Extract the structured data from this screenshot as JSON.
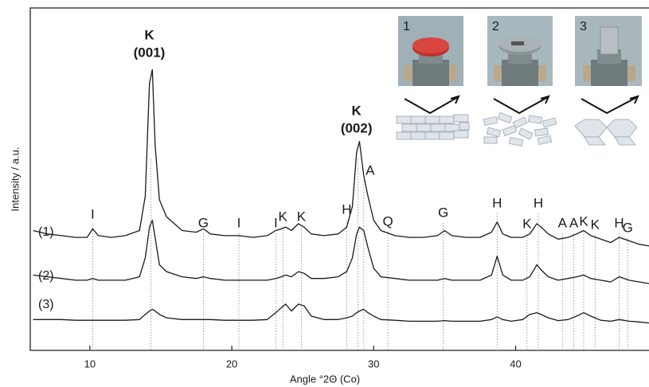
{
  "chart_data": {
    "type": "line",
    "x_label": "Angle °2Θ (Co)",
    "y_label": "Intensity / a.u.",
    "xlim": [
      5.8,
      49.4
    ],
    "xticks": [
      10,
      20,
      30,
      40
    ],
    "ylim": [
      0,
      100
    ],
    "x": [
      6,
      7,
      8,
      9,
      9.8,
      10.2,
      10.6,
      11.5,
      12.5,
      13.5,
      13.9,
      14.2,
      14.4,
      14.6,
      14.9,
      15.4,
      16.5,
      17.5,
      18.0,
      18.5,
      19.5,
      20.5,
      21.5,
      22.5,
      23.1,
      23.5,
      23.8,
      24.2,
      24.7,
      25.1,
      25.6,
      26.5,
      27.5,
      28.1,
      28.5,
      28.8,
      29.0,
      29.3,
      29.6,
      30.0,
      30.5,
      31.5,
      32.5,
      33.5,
      34.5,
      35.0,
      35.5,
      36.5,
      37.5,
      38.3,
      38.7,
      39.1,
      39.7,
      40.5,
      41.0,
      41.5,
      41.8,
      42.3,
      43.0,
      43.7,
      44.3,
      44.8,
      45.3,
      46.0,
      46.7,
      47.3,
      48.0,
      48.7,
      49.4
    ],
    "series": [
      {
        "name": "(1)",
        "color": "#1a1a1a",
        "values": [
          35,
          34,
          33.5,
          33,
          33,
          35.5,
          33.5,
          33,
          33.5,
          35,
          45,
          78,
          82,
          60,
          44,
          39,
          35,
          34.5,
          35.5,
          34,
          33.5,
          33.5,
          33,
          33.5,
          35,
          35.5,
          36,
          35,
          37,
          36,
          34,
          33.5,
          34,
          36,
          42,
          58,
          61,
          51,
          45,
          38,
          35,
          33.5,
          33,
          33,
          33.5,
          35,
          33.5,
          33,
          33,
          34.5,
          37.5,
          34,
          33,
          33,
          34,
          37,
          36,
          34,
          32.5,
          33,
          34,
          35,
          33.5,
          32.5,
          31.5,
          33,
          32,
          31,
          30.5
        ]
      },
      {
        "name": "(2)",
        "color": "#1a1a1a",
        "values": [
          22,
          21.5,
          21,
          20.5,
          20.5,
          21,
          20.5,
          20.5,
          20.5,
          21.5,
          27,
          36,
          38,
          33,
          25,
          23,
          21.5,
          21,
          21.5,
          21,
          20.5,
          20.5,
          20.5,
          20.5,
          21,
          21.5,
          22,
          21.5,
          23,
          22.5,
          21,
          21,
          21.5,
          23,
          27,
          34,
          36,
          35,
          30,
          24,
          21.5,
          21,
          20.5,
          20.5,
          20.5,
          21,
          20.5,
          20.5,
          20.5,
          22,
          27.5,
          22,
          20.5,
          20.5,
          21.5,
          25,
          23.5,
          21.5,
          20.5,
          21,
          21.5,
          22,
          21,
          20.5,
          20,
          21.5,
          20.5,
          20,
          19.5
        ]
      },
      {
        "name": "(3)",
        "color": "#1a1a1a",
        "values": [
          9,
          9,
          9,
          8.8,
          8.8,
          8.8,
          8.8,
          8.8,
          8.8,
          9,
          10.5,
          11.5,
          12,
          11.5,
          10.5,
          9.5,
          9,
          9,
          9,
          9,
          8.8,
          8.8,
          8.8,
          9,
          11,
          12.5,
          13.5,
          11.5,
          13.5,
          13,
          10,
          9,
          9,
          9.5,
          10,
          11,
          11.5,
          12,
          11,
          10,
          9,
          8.8,
          8.5,
          8.5,
          8.5,
          8.7,
          8.5,
          8.5,
          8.5,
          9,
          9.8,
          9,
          8.5,
          9,
          10.5,
          11,
          10.5,
          9.5,
          8.7,
          9,
          10,
          11,
          10,
          8.8,
          8.5,
          9,
          8.5,
          8.3,
          8
        ]
      }
    ],
    "peak_labels": [
      {
        "lines": [
          "K",
          "(001)"
        ],
        "x": 14.3
      },
      {
        "lines": [
          "K",
          "(002)"
        ],
        "x": 28.9
      }
    ],
    "annotations": [
      {
        "text": "I",
        "x": 10.2
      },
      {
        "text": "G",
        "x": 18.0
      },
      {
        "text": "I",
        "x": 20.5
      },
      {
        "text": "I",
        "x": 23.1
      },
      {
        "text": "K",
        "x": 23.6
      },
      {
        "text": "K",
        "x": 24.9
      },
      {
        "text": "H",
        "x": 28.1
      },
      {
        "text": "A",
        "x": 29.3
      },
      {
        "text": "Q",
        "x": 31.0
      },
      {
        "text": "G",
        "x": 34.9
      },
      {
        "text": "H",
        "x": 38.7
      },
      {
        "text": "K",
        "x": 40.8
      },
      {
        "text": "H",
        "x": 41.6
      },
      {
        "text": "A",
        "x": 43.3
      },
      {
        "text": "A",
        "x": 44.1
      },
      {
        "text": "K",
        "x": 44.8
      },
      {
        "text": "K",
        "x": 45.6
      },
      {
        "text": "H",
        "x": 47.3
      },
      {
        "text": "G",
        "x": 47.9
      }
    ],
    "inset_labels": [
      "1",
      "2",
      "3"
    ]
  }
}
